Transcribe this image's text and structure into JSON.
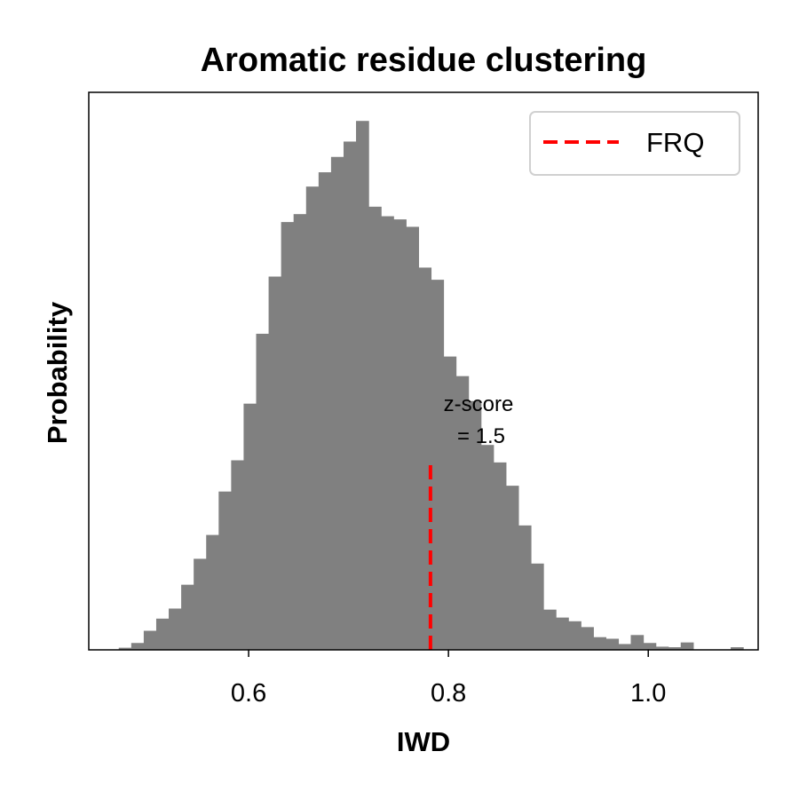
{
  "chart_data": {
    "type": "bar",
    "title": "Aromatic residue clustering",
    "xlabel": "IWD",
    "ylabel": "Probability",
    "xlim": [
      0.44,
      1.11
    ],
    "ylim": [
      0,
      1.053
    ],
    "xticks": [
      0.6,
      0.8,
      1.0
    ],
    "xtick_labels": [
      "0.6",
      "0.8",
      "1.0"
    ],
    "y_tick_labels_shown": false,
    "grid": false,
    "bin_width": 0.0125,
    "bin_start": 0.47,
    "bar_color": "#808080",
    "values": [
      0.004,
      0.013,
      0.036,
      0.059,
      0.078,
      0.123,
      0.172,
      0.217,
      0.299,
      0.358,
      0.465,
      0.597,
      0.705,
      0.808,
      0.823,
      0.875,
      0.902,
      0.931,
      0.96,
      0.999,
      0.837,
      0.819,
      0.813,
      0.799,
      0.722,
      0.699,
      0.554,
      0.517,
      0.47,
      0.387,
      0.354,
      0.31,
      0.235,
      0.163,
      0.076,
      0.061,
      0.054,
      0.043,
      0.024,
      0.021,
      0.011,
      0.028,
      0.013,
      0.006,
      0.005,
      0.014,
      0.0,
      0.0,
      0.0,
      0.005,
      0.0
    ],
    "frq_line": {
      "x": 0.782,
      "ymax": 0.36,
      "color": "#ff0000",
      "style": "dashed"
    },
    "annotation": {
      "line1": "z-score",
      "line2": "= 1.5"
    },
    "legend": {
      "position": "top-right",
      "entries": [
        {
          "label": "FRQ",
          "color": "#ff0000",
          "style": "dashed"
        }
      ]
    }
  }
}
